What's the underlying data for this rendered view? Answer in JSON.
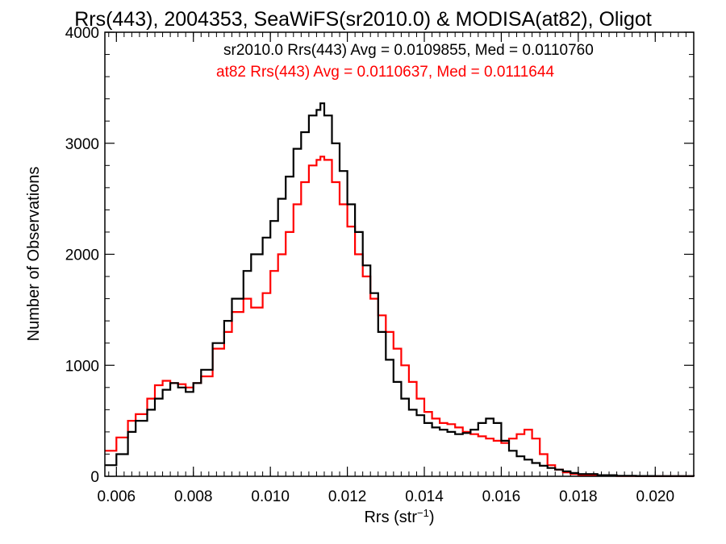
{
  "chart_data": {
    "type": "line",
    "title": "Rrs(443), 2004353, SeaWiFS(sr2010.0) & MODISA(at82), Oligot",
    "xlabel": "Rrs (str",
    "xlabel_sup": "−1",
    "xlabel_end": ")",
    "ylabel": "Number of Observations",
    "xlim": [
      0.0057,
      0.021
    ],
    "ylim": [
      0,
      4000
    ],
    "x_ticks": [
      0.006,
      0.008,
      0.01,
      0.012,
      0.014,
      0.016,
      0.018,
      0.02
    ],
    "x_tick_labels": [
      "0.006",
      "0.008",
      "0.010",
      "0.012",
      "0.014",
      "0.016",
      "0.018",
      "0.020"
    ],
    "y_ticks": [
      0,
      1000,
      2000,
      3000,
      4000
    ],
    "y_tick_labels": [
      "0",
      "1000",
      "2000",
      "3000",
      "4000"
    ],
    "legend": [
      {
        "text": "sr2010.0 Rrs(443) Avg = 0.0109855, Med = 0.0110760",
        "color": "#000000"
      },
      {
        "text": "at82 Rrs(443) Avg = 0.0110637, Med = 0.0111644",
        "color": "#ff0000"
      }
    ],
    "legend_position": "top-right",
    "series": [
      {
        "color": "#000000",
        "x": [
          0.0057,
          0.006,
          0.0063,
          0.0065,
          0.0068,
          0.007,
          0.0072,
          0.0074,
          0.0076,
          0.0078,
          0.008,
          0.0082,
          0.0085,
          0.0088,
          0.009,
          0.0093,
          0.0095,
          0.0098,
          0.01,
          0.0102,
          0.0104,
          0.0106,
          0.0108,
          0.011,
          0.0112,
          0.0113,
          0.0114,
          0.0116,
          0.0118,
          0.012,
          0.0122,
          0.0124,
          0.0126,
          0.0128,
          0.013,
          0.0132,
          0.0134,
          0.0136,
          0.0138,
          0.014,
          0.0142,
          0.0144,
          0.0146,
          0.0148,
          0.015,
          0.0152,
          0.0154,
          0.0156,
          0.0158,
          0.016,
          0.0162,
          0.0164,
          0.0166,
          0.0168,
          0.017,
          0.0172,
          0.0174,
          0.0176,
          0.0178,
          0.018,
          0.0185,
          0.019,
          0.0195,
          0.02,
          0.021
        ],
        "y": [
          100,
          200,
          400,
          500,
          600,
          700,
          780,
          840,
          800,
          760,
          840,
          960,
          1200,
          1400,
          1600,
          1850,
          2000,
          2150,
          2300,
          2500,
          2700,
          2950,
          3100,
          3250,
          3300,
          3360,
          3250,
          3000,
          2750,
          2450,
          2200,
          1900,
          1650,
          1300,
          1050,
          850,
          700,
          600,
          550,
          480,
          440,
          420,
          400,
          380,
          390,
          420,
          480,
          520,
          480,
          320,
          230,
          180,
          150,
          120,
          95,
          75,
          60,
          45,
          30,
          20,
          10,
          5,
          3,
          2,
          0
        ]
      },
      {
        "color": "#ff0000",
        "x": [
          0.0057,
          0.006,
          0.0063,
          0.0065,
          0.0068,
          0.007,
          0.0072,
          0.0074,
          0.0076,
          0.0078,
          0.008,
          0.0082,
          0.0085,
          0.0088,
          0.009,
          0.0093,
          0.0095,
          0.0098,
          0.01,
          0.0102,
          0.0104,
          0.0106,
          0.0108,
          0.011,
          0.0112,
          0.0113,
          0.0114,
          0.0116,
          0.0118,
          0.012,
          0.0122,
          0.0124,
          0.0126,
          0.0128,
          0.013,
          0.0132,
          0.0134,
          0.0136,
          0.0138,
          0.014,
          0.0142,
          0.0144,
          0.0146,
          0.0148,
          0.015,
          0.0152,
          0.0154,
          0.0156,
          0.0158,
          0.016,
          0.0162,
          0.0164,
          0.0166,
          0.0168,
          0.017,
          0.0172,
          0.0174,
          0.0176,
          0.0178,
          0.018,
          0.0185,
          0.019,
          0.0195,
          0.02,
          0.021
        ],
        "y": [
          230,
          350,
          500,
          560,
          700,
          820,
          860,
          840,
          830,
          800,
          840,
          900,
          1150,
          1300,
          1480,
          1600,
          1520,
          1650,
          1850,
          2000,
          2200,
          2450,
          2650,
          2800,
          2850,
          2880,
          2850,
          2650,
          2450,
          2250,
          2000,
          1800,
          1600,
          1450,
          1300,
          1150,
          1000,
          850,
          700,
          580,
          520,
          480,
          470,
          440,
          400,
          380,
          360,
          340,
          320,
          300,
          340,
          380,
          420,
          340,
          200,
          100,
          60,
          35,
          20,
          10,
          5,
          3,
          2,
          1,
          0
        ]
      }
    ]
  }
}
